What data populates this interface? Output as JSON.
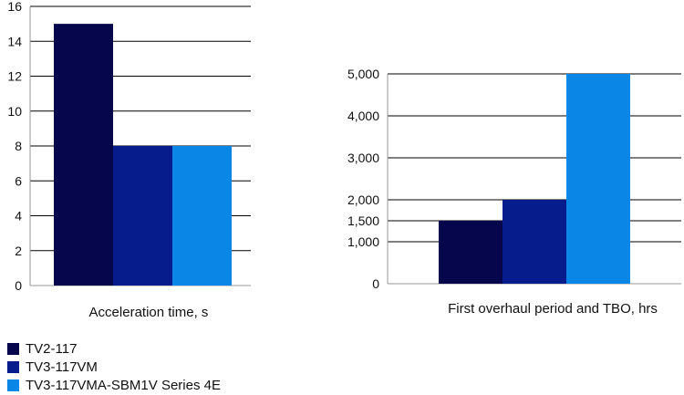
{
  "chart_data": [
    {
      "type": "bar",
      "categories": [
        "Acceleration time, s"
      ],
      "xlabel": "Acceleration time, s",
      "ylim": [
        0,
        16
      ],
      "yticks": [
        0,
        2,
        4,
        6,
        8,
        10,
        12,
        14,
        16
      ],
      "ytick_labels": [
        "0",
        "2",
        "4",
        "6",
        "8",
        "10",
        "12",
        "14",
        "16"
      ],
      "grid": true,
      "series": [
        {
          "name": "TV2-117",
          "values": [
            15
          ]
        },
        {
          "name": "TV3-117VM",
          "values": [
            8
          ]
        },
        {
          "name": "TV3-117VMA-SBM1V Series 4E",
          "values": [
            8
          ]
        }
      ]
    },
    {
      "type": "bar",
      "categories": [
        "First overhaul period and TBO, hrs"
      ],
      "xlabel": "First overhaul period and TBO, hrs",
      "ylim": [
        0,
        5000
      ],
      "yticks": [
        0,
        1000,
        1500,
        2000,
        3000,
        4000,
        5000
      ],
      "ytick_labels": [
        "0",
        "1,000",
        "1,500",
        "2,000",
        "3,000",
        "4,000",
        "5,000"
      ],
      "grid": true,
      "series": [
        {
          "name": "TV2-117",
          "values": [
            1500
          ]
        },
        {
          "name": "TV3-117VM",
          "values": [
            2000
          ]
        },
        {
          "name": "TV3-117VMA-SBM1V Series 4E",
          "values": [
            5000
          ]
        }
      ]
    }
  ],
  "legend": {
    "placement": "bottom-left",
    "items": [
      {
        "label": "TV2-117",
        "color": "#06064d"
      },
      {
        "label": "TV3-117VM",
        "color": "#071c8c"
      },
      {
        "label": "TV3-117VMA-SBM1V Series 4E",
        "color": "#0a86e6"
      }
    ]
  },
  "colors": {
    "gridline": "#000000",
    "axis": "#999999"
  }
}
